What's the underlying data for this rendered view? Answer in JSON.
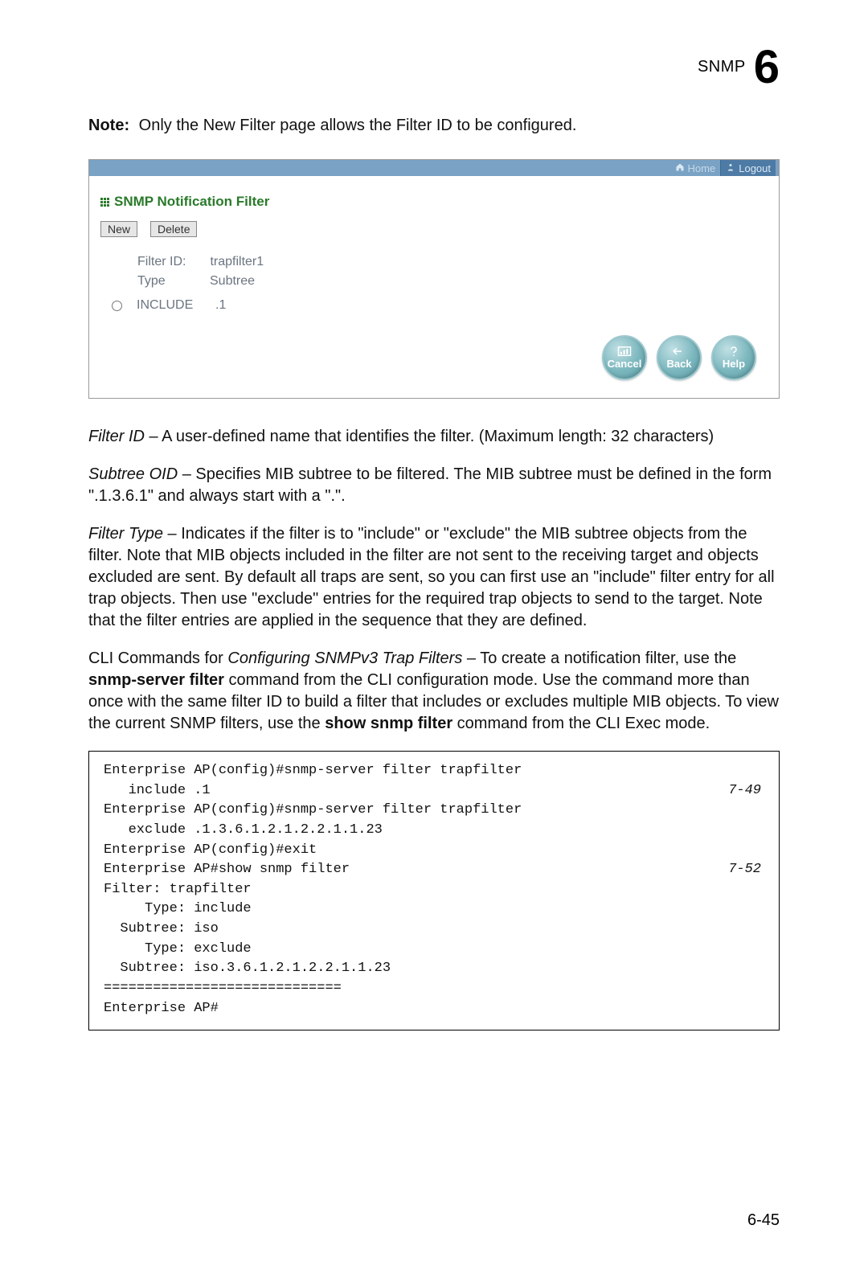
{
  "header": {
    "section_label": "SNMP",
    "chapter_number": "6"
  },
  "note": {
    "prefix": "Note:",
    "text": "Only the New Filter page allows the Filter ID to be configured."
  },
  "screenshot": {
    "topbar": {
      "home": "Home",
      "logout": "Logout"
    },
    "panel_title": "SNMP Notification Filter",
    "buttons": {
      "new": "New",
      "delete": "Delete"
    },
    "fields": {
      "filter_id_label": "Filter ID:",
      "filter_id_value": "trapfilter1",
      "type_label": "Type",
      "subtree_label": "Subtree"
    },
    "entry": {
      "type": "INCLUDE",
      "subtree": ".1"
    },
    "actions": {
      "cancel": "Cancel",
      "back": "Back",
      "help": "Help"
    },
    "colors": {
      "topbar_bg": "#7aa2c4",
      "title_color": "#2a7a2a",
      "button_gradient_light": "#c0e0e4",
      "button_gradient_dark": "#5f9da5"
    }
  },
  "paragraphs": {
    "filter_id": {
      "term": "Filter ID",
      "desc": " – A user-defined name that identifies the filter. (Maximum length: 32 characters)"
    },
    "subtree_oid": {
      "term": "Subtree OID",
      "desc": " – Specifies MIB subtree to be filtered. The MIB subtree must be defined in the form \".1.3.6.1\" and always start with a \".\"."
    },
    "filter_type": {
      "term": "Filter Type",
      "desc": " – Indicates if the filter is to \"include\" or \"exclude\" the MIB subtree objects from the filter. Note that MIB objects included in the filter are not sent to the receiving target and objects excluded are sent. By default all traps are sent, so you can first use an \"include\" filter entry for all trap objects. Then use \"exclude\" entries for the required trap objects to send to the target. Note that the filter entries are applied in the sequence that they are defined."
    },
    "cli_intro": {
      "pre": "CLI Commands for ",
      "em": "Configuring SNMPv3 Trap Filters",
      "post1": " – To create a notification filter, use the ",
      "cmd1": "snmp-server filter",
      "post2": " command from the CLI configuration mode. Use the command more than once with the same filter ID to build a filter that includes or excludes multiple MIB objects. To view the current SNMP filters, use the ",
      "cmd2": "show snmp filter",
      "post3": " command from the CLI Exec mode."
    }
  },
  "cli": {
    "lines": [
      {
        "text": "Enterprise AP(config)#snmp-server filter trapfilter",
        "ref": ""
      },
      {
        "text": "   include .1",
        "ref": "7-49"
      },
      {
        "text": "Enterprise AP(config)#snmp-server filter trapfilter",
        "ref": ""
      },
      {
        "text": "   exclude .1.3.6.1.2.1.2.2.1.1.23",
        "ref": ""
      },
      {
        "text": "Enterprise AP(config)#exit",
        "ref": ""
      },
      {
        "text": "Enterprise AP#show snmp filter",
        "ref": "7-52"
      },
      {
        "text": "",
        "ref": ""
      },
      {
        "text": "Filter: trapfilter",
        "ref": ""
      },
      {
        "text": "     Type: include",
        "ref": ""
      },
      {
        "text": "  Subtree: iso",
        "ref": ""
      },
      {
        "text": "",
        "ref": ""
      },
      {
        "text": "     Type: exclude",
        "ref": ""
      },
      {
        "text": "  Subtree: iso.3.6.1.2.1.2.2.1.1.23",
        "ref": ""
      },
      {
        "text": "=============================",
        "ref": ""
      },
      {
        "text": "Enterprise AP#",
        "ref": ""
      }
    ]
  },
  "page_number": "6-45"
}
